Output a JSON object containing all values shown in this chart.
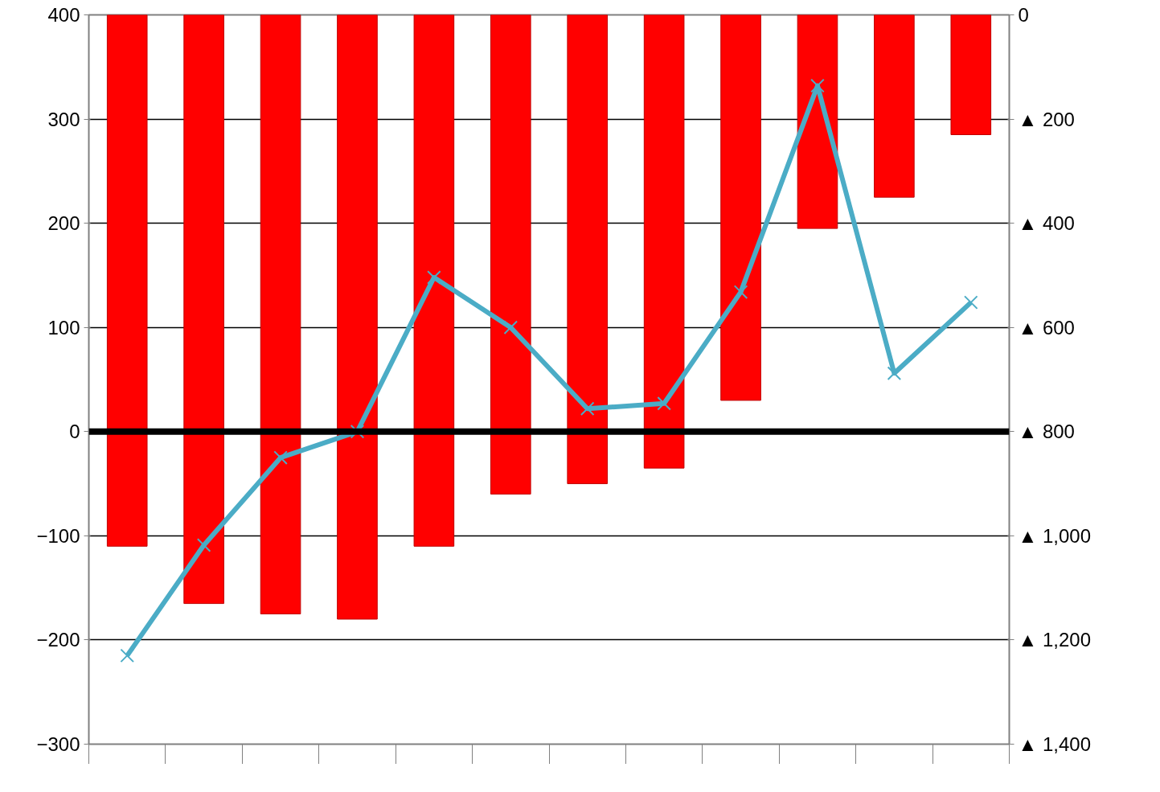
{
  "chart_data": {
    "type": "bar",
    "categories": [
      null,
      null,
      null,
      null,
      null,
      null,
      null,
      null,
      null,
      null,
      null,
      null
    ],
    "series": [
      {
        "axis": "y2",
        "color": "#ff0000",
        "values": [
          -1020,
          -1130,
          -1150,
          -1160,
          -1020,
          -920,
          -900,
          -870,
          -740,
          -410,
          -350,
          -230
        ]
      },
      {
        "type": "line",
        "color": "#4bacc6",
        "marker": "cross",
        "values": [
          -215,
          -109,
          -25,
          0,
          148,
          100,
          22,
          27,
          134,
          332,
          56,
          124
        ]
      }
    ],
    "ylim": [
      -300,
      400
    ],
    "yticks": [
      {
        "value": -300,
        "label": "−300"
      },
      {
        "value": -200,
        "label": "−200"
      },
      {
        "value": -100,
        "label": "−100"
      },
      0,
      100,
      200,
      300,
      400
    ],
    "y2lim": [
      -1400,
      0
    ],
    "y2ticks": [
      {
        "value": -1400,
        "label": "▲ 1,400"
      },
      {
        "value": -1200,
        "label": "▲ 1,200"
      },
      {
        "value": -1000,
        "label": "▲ 1,000"
      },
      {
        "value": -800,
        "label": "▲ 800"
      },
      {
        "value": -600,
        "label": "▲ 600"
      },
      {
        "value": -400,
        "label": "▲ 400"
      },
      {
        "value": -200,
        "label": "▲ 200"
      },
      0
    ],
    "ref_lines": [
      {
        "axis": "y",
        "value": 0,
        "color": "#000000"
      }
    ],
    "grid": "y"
  }
}
